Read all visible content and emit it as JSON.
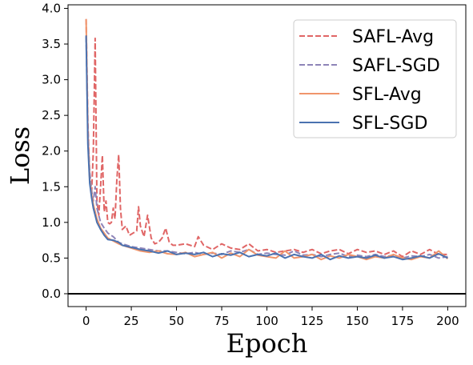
{
  "chart_data": {
    "type": "line",
    "title": "",
    "xlabel": "Epoch",
    "ylabel": "Loss",
    "xlim": [
      -10,
      210
    ],
    "ylim": [
      -0.18,
      4.05
    ],
    "xticks": [
      0,
      25,
      50,
      75,
      100,
      125,
      150,
      175,
      200
    ],
    "xtick_labels": [
      "0",
      "25",
      "50",
      "75",
      "100",
      "125",
      "150",
      "175",
      "200"
    ],
    "yticks": [
      0.0,
      0.5,
      1.0,
      1.5,
      2.0,
      2.5,
      3.0,
      3.5,
      4.0
    ],
    "ytick_labels": [
      "0.0",
      "0.5",
      "1.0",
      "1.5",
      "2.0",
      "2.5",
      "3.0",
      "3.5",
      "4.0"
    ],
    "hline": 0.0,
    "grid": false,
    "legend_position": "top-right",
    "series": [
      {
        "name": "SAFL-Avg",
        "color": "#e06666",
        "dash": true,
        "x": [
          0,
          1,
          2,
          3,
          4,
          5,
          6,
          7,
          8,
          9,
          10,
          11,
          12,
          13,
          14,
          15,
          16,
          17,
          18,
          19,
          20,
          22,
          24,
          26,
          28,
          29,
          30,
          32,
          34,
          36,
          38,
          40,
          42,
          44,
          46,
          48,
          50,
          55,
          60,
          62,
          65,
          70,
          75,
          80,
          85,
          90,
          95,
          100,
          105,
          110,
          115,
          120,
          125,
          130,
          135,
          140,
          145,
          150,
          155,
          160,
          165,
          170,
          175,
          180,
          185,
          190,
          195,
          200
        ],
        "y": [
          3.85,
          2.4,
          1.6,
          1.4,
          2.0,
          3.58,
          1.3,
          1.1,
          1.5,
          1.94,
          1.15,
          1.3,
          1.0,
          0.98,
          1.0,
          1.2,
          1.05,
          1.6,
          1.95,
          1.2,
          0.9,
          0.95,
          0.82,
          0.85,
          0.88,
          1.22,
          0.95,
          0.8,
          1.1,
          0.78,
          0.7,
          0.72,
          0.78,
          0.92,
          0.72,
          0.68,
          0.68,
          0.7,
          0.66,
          0.8,
          0.68,
          0.62,
          0.7,
          0.64,
          0.62,
          0.7,
          0.6,
          0.62,
          0.58,
          0.6,
          0.62,
          0.58,
          0.62,
          0.56,
          0.6,
          0.62,
          0.56,
          0.62,
          0.58,
          0.6,
          0.55,
          0.6,
          0.52,
          0.6,
          0.55,
          0.62,
          0.55,
          0.55
        ]
      },
      {
        "name": "SAFL-SGD",
        "color": "#8e84b8",
        "dash": true,
        "x": [
          0,
          1,
          2,
          3,
          4,
          5,
          6,
          8,
          10,
          12,
          15,
          18,
          20,
          25,
          30,
          35,
          40,
          45,
          50,
          55,
          60,
          65,
          70,
          75,
          80,
          85,
          90,
          95,
          100,
          105,
          110,
          115,
          120,
          125,
          130,
          135,
          140,
          145,
          150,
          155,
          160,
          165,
          170,
          175,
          180,
          185,
          190,
          195,
          200
        ],
        "y": [
          3.6,
          2.3,
          1.7,
          1.45,
          1.3,
          1.5,
          1.2,
          1.0,
          0.92,
          0.85,
          0.8,
          0.72,
          0.7,
          0.66,
          0.64,
          0.62,
          0.6,
          0.6,
          0.58,
          0.56,
          0.58,
          0.55,
          0.57,
          0.55,
          0.6,
          0.58,
          0.62,
          0.55,
          0.57,
          0.55,
          0.54,
          0.6,
          0.54,
          0.55,
          0.52,
          0.55,
          0.57,
          0.52,
          0.54,
          0.52,
          0.55,
          0.52,
          0.54,
          0.5,
          0.53,
          0.52,
          0.55,
          0.5,
          0.52
        ]
      },
      {
        "name": "SFL-Avg",
        "color": "#f0956b",
        "dash": false,
        "x": [
          0,
          1,
          2,
          3,
          4,
          5,
          6,
          8,
          10,
          12,
          15,
          18,
          20,
          25,
          30,
          35,
          40,
          45,
          50,
          55,
          60,
          65,
          70,
          75,
          80,
          85,
          90,
          95,
          100,
          105,
          110,
          115,
          120,
          125,
          130,
          135,
          140,
          145,
          150,
          155,
          160,
          165,
          170,
          175,
          180,
          185,
          190,
          195,
          200
        ],
        "y": [
          3.85,
          2.2,
          1.6,
          1.4,
          1.25,
          1.15,
          1.05,
          0.92,
          0.85,
          0.78,
          0.74,
          0.7,
          0.68,
          0.64,
          0.6,
          0.58,
          0.6,
          0.56,
          0.55,
          0.58,
          0.52,
          0.55,
          0.58,
          0.5,
          0.57,
          0.52,
          0.62,
          0.54,
          0.52,
          0.5,
          0.6,
          0.5,
          0.52,
          0.55,
          0.48,
          0.53,
          0.5,
          0.55,
          0.52,
          0.48,
          0.52,
          0.5,
          0.55,
          0.5,
          0.48,
          0.52,
          0.5,
          0.6,
          0.49
        ]
      },
      {
        "name": "SFL-SGD",
        "color": "#4a72b0",
        "dash": false,
        "x": [
          0,
          1,
          2,
          3,
          4,
          5,
          6,
          8,
          10,
          12,
          15,
          18,
          20,
          25,
          30,
          35,
          40,
          45,
          50,
          55,
          60,
          65,
          70,
          75,
          80,
          85,
          90,
          95,
          100,
          105,
          110,
          115,
          120,
          125,
          130,
          135,
          140,
          145,
          150,
          155,
          160,
          165,
          170,
          175,
          180,
          185,
          190,
          195,
          200
        ],
        "y": [
          3.62,
          2.1,
          1.55,
          1.35,
          1.2,
          1.1,
          1.0,
          0.9,
          0.82,
          0.76,
          0.75,
          0.72,
          0.68,
          0.65,
          0.62,
          0.6,
          0.57,
          0.6,
          0.55,
          0.57,
          0.55,
          0.58,
          0.52,
          0.56,
          0.54,
          0.58,
          0.52,
          0.55,
          0.53,
          0.57,
          0.5,
          0.55,
          0.52,
          0.5,
          0.55,
          0.48,
          0.53,
          0.5,
          0.52,
          0.5,
          0.54,
          0.5,
          0.52,
          0.48,
          0.5,
          0.53,
          0.5,
          0.56,
          0.5
        ]
      }
    ]
  }
}
